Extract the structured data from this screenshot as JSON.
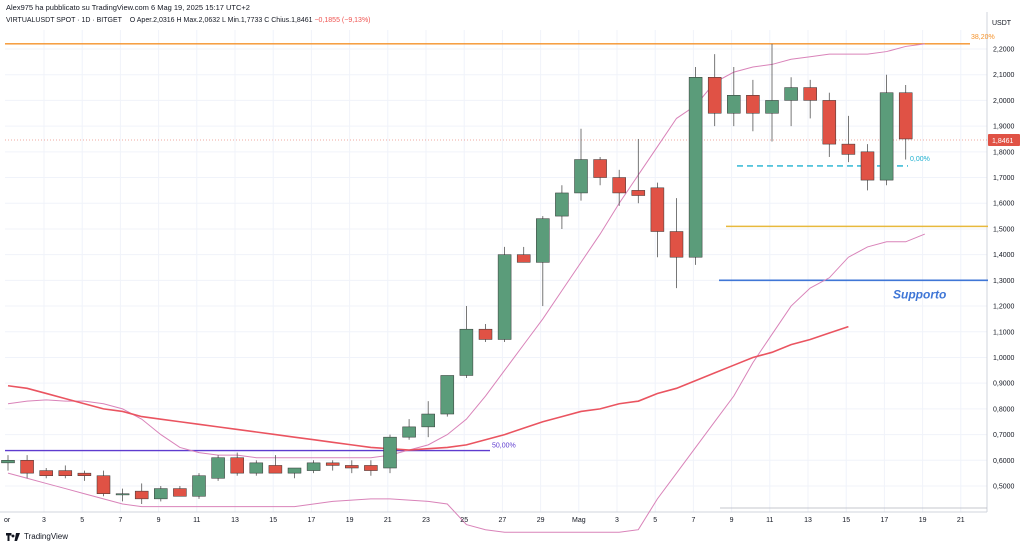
{
  "header": {
    "published_line": "Alex975 ha pubblicato su TradingView.com 6 Mag 19, 2025 15:17 UTC+2",
    "symbol": "VIRTUALUSDT SPOT · 1D · BITGET",
    "ohlc": {
      "open_label": "O",
      "open": "Aper.2,0316",
      "high_label": "H",
      "high": "Max.2,0632",
      "low_label": "L",
      "low": "Min.1,7733",
      "close_label": "C",
      "close": "Chius.1,8461",
      "change": "−0,1855 (−9,13%)"
    }
  },
  "footer": {
    "brand": "TradingView"
  },
  "chart_data": {
    "type": "candlestick",
    "currency_label": "USDT",
    "current_price_label": "1,8461",
    "y_ticks": [
      "2,2000",
      "2,1000",
      "2,0000",
      "1,9000",
      "1,8000",
      "1,7000",
      "1,6000",
      "1,5000",
      "1,4000",
      "1,3000",
      "1,2000",
      "1,1000",
      "1,0000",
      "0,9000",
      "0,8000",
      "0,7000",
      "0,6000",
      "0,5000"
    ],
    "x_ticks": [
      "3",
      "5",
      "7",
      "9",
      "11",
      "13",
      "15",
      "17",
      "19",
      "21",
      "23",
      "25",
      "27",
      "29",
      "Mag",
      "3",
      "5",
      "7",
      "9",
      "11",
      "13",
      "15",
      "17",
      "19",
      "21"
    ],
    "x_tick_first_partial": "or",
    "candles": [
      {
        "o": 0.59,
        "h": 0.62,
        "l": 0.56,
        "c": 0.6
      },
      {
        "o": 0.6,
        "h": 0.62,
        "l": 0.53,
        "c": 0.55
      },
      {
        "o": 0.56,
        "h": 0.57,
        "l": 0.53,
        "c": 0.54
      },
      {
        "o": 0.56,
        "h": 0.58,
        "l": 0.53,
        "c": 0.54
      },
      {
        "o": 0.55,
        "h": 0.56,
        "l": 0.52,
        "c": 0.54
      },
      {
        "o": 0.54,
        "h": 0.56,
        "l": 0.46,
        "c": 0.47
      },
      {
        "o": 0.47,
        "h": 0.49,
        "l": 0.44,
        "c": 0.47
      },
      {
        "o": 0.48,
        "h": 0.51,
        "l": 0.43,
        "c": 0.45
      },
      {
        "o": 0.45,
        "h": 0.5,
        "l": 0.44,
        "c": 0.49
      },
      {
        "o": 0.49,
        "h": 0.5,
        "l": 0.46,
        "c": 0.46
      },
      {
        "o": 0.46,
        "h": 0.55,
        "l": 0.45,
        "c": 0.54
      },
      {
        "o": 0.53,
        "h": 0.62,
        "l": 0.52,
        "c": 0.61
      },
      {
        "o": 0.61,
        "h": 0.63,
        "l": 0.54,
        "c": 0.55
      },
      {
        "o": 0.55,
        "h": 0.6,
        "l": 0.54,
        "c": 0.59
      },
      {
        "o": 0.58,
        "h": 0.62,
        "l": 0.55,
        "c": 0.55
      },
      {
        "o": 0.55,
        "h": 0.57,
        "l": 0.53,
        "c": 0.57
      },
      {
        "o": 0.56,
        "h": 0.6,
        "l": 0.55,
        "c": 0.59
      },
      {
        "o": 0.59,
        "h": 0.6,
        "l": 0.56,
        "c": 0.58
      },
      {
        "o": 0.58,
        "h": 0.6,
        "l": 0.55,
        "c": 0.57
      },
      {
        "o": 0.58,
        "h": 0.6,
        "l": 0.54,
        "c": 0.56
      },
      {
        "o": 0.57,
        "h": 0.7,
        "l": 0.55,
        "c": 0.69
      },
      {
        "o": 0.69,
        "h": 0.76,
        "l": 0.68,
        "c": 0.73
      },
      {
        "o": 0.73,
        "h": 0.83,
        "l": 0.69,
        "c": 0.78
      },
      {
        "o": 0.78,
        "h": 0.93,
        "l": 0.77,
        "c": 0.93
      },
      {
        "o": 0.93,
        "h": 1.2,
        "l": 0.92,
        "c": 1.11
      },
      {
        "o": 1.11,
        "h": 1.13,
        "l": 1.06,
        "c": 1.07
      },
      {
        "o": 1.07,
        "h": 1.43,
        "l": 1.06,
        "c": 1.4
      },
      {
        "o": 1.4,
        "h": 1.43,
        "l": 1.37,
        "c": 1.37
      },
      {
        "o": 1.37,
        "h": 1.55,
        "l": 1.2,
        "c": 1.54
      },
      {
        "o": 1.55,
        "h": 1.67,
        "l": 1.5,
        "c": 1.64
      },
      {
        "o": 1.64,
        "h": 1.89,
        "l": 1.61,
        "c": 1.77
      },
      {
        "o": 1.77,
        "h": 1.78,
        "l": 1.67,
        "c": 1.7
      },
      {
        "o": 1.7,
        "h": 1.73,
        "l": 1.59,
        "c": 1.64
      },
      {
        "o": 1.65,
        "h": 1.85,
        "l": 1.6,
        "c": 1.63
      },
      {
        "o": 1.66,
        "h": 1.68,
        "l": 1.39,
        "c": 1.49
      },
      {
        "o": 1.49,
        "h": 1.62,
        "l": 1.27,
        "c": 1.39
      },
      {
        "o": 1.39,
        "h": 2.13,
        "l": 1.36,
        "c": 2.09
      },
      {
        "o": 2.09,
        "h": 2.18,
        "l": 1.9,
        "c": 1.95
      },
      {
        "o": 1.95,
        "h": 2.13,
        "l": 1.9,
        "c": 2.02
      },
      {
        "o": 2.02,
        "h": 2.08,
        "l": 1.88,
        "c": 1.95
      },
      {
        "o": 1.95,
        "h": 2.22,
        "l": 1.84,
        "c": 2.0
      },
      {
        "o": 2.0,
        "h": 2.09,
        "l": 1.9,
        "c": 2.05
      },
      {
        "o": 2.05,
        "h": 2.08,
        "l": 1.93,
        "c": 2.0
      },
      {
        "o": 2.0,
        "h": 2.03,
        "l": 1.78,
        "c": 1.83
      },
      {
        "o": 1.83,
        "h": 1.94,
        "l": 1.76,
        "c": 1.79
      },
      {
        "o": 1.8,
        "h": 1.83,
        "l": 1.65,
        "c": 1.69
      },
      {
        "o": 1.69,
        "h": 2.1,
        "l": 1.67,
        "c": 2.03
      },
      {
        "o": 2.03,
        "h": 2.06,
        "l": 1.77,
        "c": 1.85
      }
    ],
    "ema_line": [
      0.89,
      0.88,
      0.86,
      0.84,
      0.82,
      0.8,
      0.79,
      0.77,
      0.76,
      0.75,
      0.74,
      0.73,
      0.72,
      0.71,
      0.7,
      0.69,
      0.68,
      0.67,
      0.66,
      0.65,
      0.645,
      0.64,
      0.645,
      0.65,
      0.66,
      0.68,
      0.7,
      0.725,
      0.75,
      0.77,
      0.79,
      0.8,
      0.82,
      0.83,
      0.86,
      0.88,
      0.91,
      0.94,
      0.97,
      1.0,
      1.02,
      1.05,
      1.07,
      1.095,
      1.12
    ],
    "bollinger_upper": [
      0.82,
      0.83,
      0.835,
      0.83,
      0.83,
      0.82,
      0.8,
      0.76,
      0.7,
      0.65,
      0.63,
      0.62,
      0.62,
      0.61,
      0.61,
      0.61,
      0.61,
      0.61,
      0.61,
      0.61,
      0.62,
      0.64,
      0.66,
      0.7,
      0.76,
      0.85,
      0.95,
      1.05,
      1.15,
      1.26,
      1.37,
      1.48,
      1.6,
      1.71,
      1.82,
      1.93,
      1.98,
      2.07,
      2.11,
      2.13,
      2.14,
      2.16,
      2.17,
      2.18,
      2.18,
      2.18,
      2.19,
      2.21,
      2.22
    ],
    "bollinger_lower": [
      0.55,
      0.53,
      0.51,
      0.49,
      0.47,
      0.45,
      0.43,
      0.42,
      0.42,
      0.42,
      0.42,
      0.42,
      0.42,
      0.42,
      0.42,
      0.42,
      0.43,
      0.44,
      0.445,
      0.45,
      0.45,
      0.445,
      0.44,
      0.43,
      0.35,
      0.33,
      0.32,
      0.32,
      0.32,
      0.32,
      0.32,
      0.32,
      0.32,
      0.33,
      0.45,
      0.55,
      0.65,
      0.75,
      0.85,
      0.98,
      1.09,
      1.2,
      1.27,
      1.31,
      1.39,
      1.43,
      1.45,
      1.45,
      1.48
    ],
    "bollinger_basis": [
      0.63,
      0.63,
      0.63,
      0.63,
      0.63,
      0.63,
      0.63
    ],
    "annotations": {
      "fib_top_label": "38,20%",
      "fib_level_value": 2.22,
      "fib_mid_label": "50,00%",
      "fib_mid_value": 0.638,
      "support_label": "Supporto",
      "support_value": 1.3,
      "yellow_level_value": 1.51,
      "cyan_label": "0,00%",
      "cyan_value": 1.745
    }
  },
  "colors": {
    "up": "#5b9c7a",
    "down": "#e05245",
    "ema": "#ea5460",
    "bollinger": "#d983b9",
    "fib_top": "#f5922a",
    "fib_mid": "#5e3ccf",
    "support": "#3f76d6",
    "yellow": "#e7b93d",
    "cyan": "#1fb0d0",
    "grid": "#f0f3fa",
    "axis_text": "#131722",
    "price_tag": "#e05245"
  }
}
